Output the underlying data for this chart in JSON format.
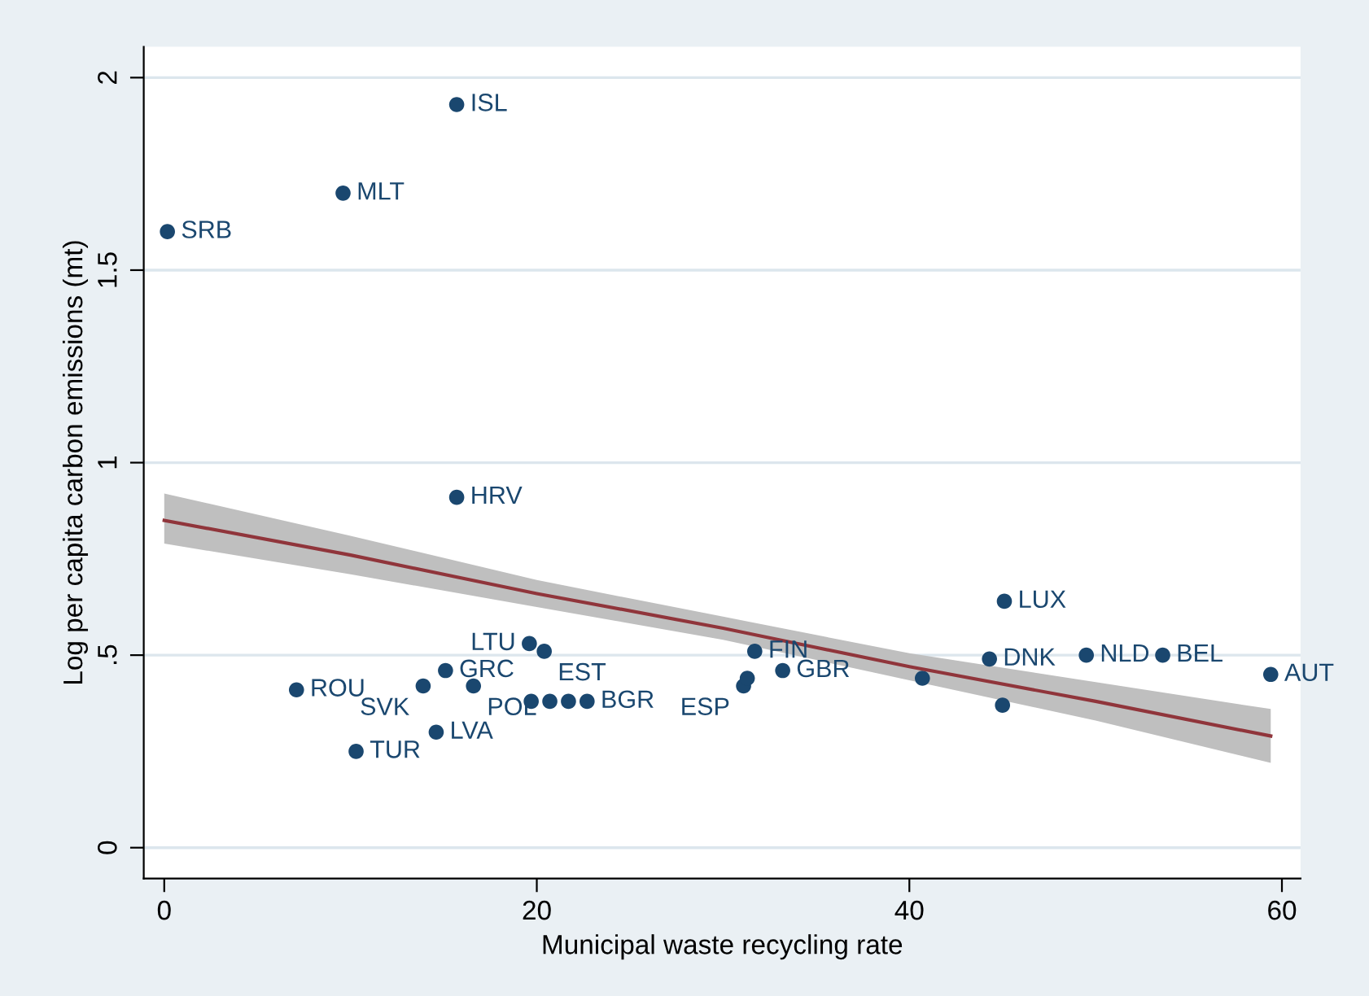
{
  "chart_data": {
    "type": "scatter",
    "xlabel": "Municipal waste recycling rate",
    "ylabel": "Log per capita carbon emissions (mt)",
    "xlim": [
      -1.1,
      61
    ],
    "ylim": [
      -0.08,
      2.08
    ],
    "xticks": [
      0,
      20,
      40,
      60
    ],
    "yticks": [
      0,
      {
        "value": 0.5,
        "label": ".5"
      },
      1,
      1.5,
      2
    ],
    "grid": "y",
    "legend": false,
    "series": [
      {
        "marker": "circle",
        "color": "#1a476f",
        "x": [
          0.17,
          9.6,
          15.7,
          15.7,
          45.1,
          53.6,
          49.5,
          44.3,
          59.4,
          45.0,
          40.7,
          31.7,
          33.2,
          31.1,
          31.3,
          19.6,
          20.4,
          15.1,
          13.9,
          16.6,
          7.1,
          14.6,
          10.3,
          19.7,
          20.7,
          21.7,
          22.7
        ],
        "values": [
          1.6,
          1.7,
          1.93,
          0.91,
          0.64,
          0.5,
          0.5,
          0.49,
          0.45,
          0.37,
          0.44,
          0.51,
          0.46,
          0.42,
          0.44,
          0.53,
          0.51,
          0.46,
          0.42,
          0.42,
          0.41,
          0.3,
          0.25,
          0.38,
          0.38,
          0.38,
          0.38
        ]
      },
      {
        "type": "line",
        "color": "#90353b",
        "x": [
          0,
          10,
          20,
          30,
          40,
          50,
          59.4
        ],
        "values": [
          0.85,
          0.76,
          0.66,
          0.57,
          0.47,
          0.38,
          0.29
        ],
        "lower": [
          0.79,
          0.71,
          0.625,
          0.54,
          0.435,
          0.33,
          0.22
        ],
        "upper": [
          0.92,
          0.81,
          0.695,
          0.6,
          0.505,
          0.43,
          0.36
        ]
      }
    ],
    "annotations": [
      {
        "text": "SRB",
        "x": 0.17,
        "y": 1.6
      },
      {
        "text": "MLT",
        "x": 9.6,
        "y": 1.7
      },
      {
        "text": "ISL",
        "x": 15.7,
        "y": 1.93
      },
      {
        "text": "HRV",
        "x": 15.7,
        "y": 0.91
      },
      {
        "text": "LUX",
        "x": 45.1,
        "y": 0.64
      },
      {
        "text": "BEL",
        "x": 53.6,
        "y": 0.5
      },
      {
        "text": "NLD",
        "x": 49.5,
        "y": 0.5
      },
      {
        "text": "DNK",
        "x": 44.3,
        "y": 0.49
      },
      {
        "text": "AUT",
        "x": 59.4,
        "y": 0.45
      },
      {
        "text": "FIN",
        "x": 31.7,
        "y": 0.51
      },
      {
        "text": "GBR",
        "x": 33.2,
        "y": 0.46
      },
      {
        "text": "ESP",
        "x": 31.1,
        "y": 0.42
      },
      {
        "text": "LTU",
        "x": 19.6,
        "y": 0.53
      },
      {
        "text": "EST",
        "x": 20.4,
        "y": 0.51
      },
      {
        "text": "GRC",
        "x": 15.1,
        "y": 0.46
      },
      {
        "text": "SVK",
        "x": 13.9,
        "y": 0.42
      },
      {
        "text": "POL",
        "x": 16.6,
        "y": 0.42
      },
      {
        "text": "ROU",
        "x": 7.1,
        "y": 0.41
      },
      {
        "text": "LVA",
        "x": 14.6,
        "y": 0.3
      },
      {
        "text": "TUR",
        "x": 10.3,
        "y": 0.25
      },
      {
        "text": "BGR",
        "x": 22.7,
        "y": 0.38
      }
    ]
  }
}
